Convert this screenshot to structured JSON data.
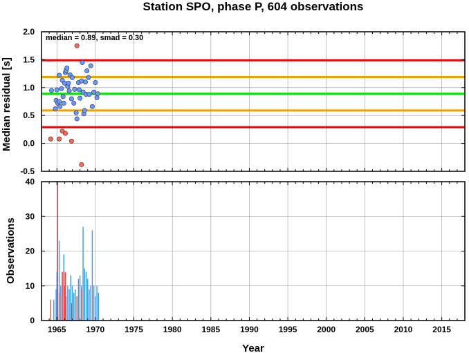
{
  "chart_data": [
    {
      "type": "scatter",
      "title": "Station SPO, phase P, 604 observations",
      "annotation": "median = 0.89, smad = 0.30",
      "ylabel": "Median residual [s]",
      "xlim": [
        1963,
        2018
      ],
      "ylim": [
        -0.5,
        2.0
      ],
      "yticks": [
        "-0.5",
        "0.0",
        "0.5",
        "1.0",
        "1.5",
        "2.0"
      ],
      "grid": true,
      "reference_lines": [
        {
          "role": "median",
          "value": 0.89,
          "color": "#00e600"
        },
        {
          "role": "median+1smad",
          "value": 1.19,
          "color": "#f0a000"
        },
        {
          "role": "median-1smad",
          "value": 0.59,
          "color": "#f0a000"
        },
        {
          "role": "median+2smad",
          "value": 1.49,
          "color": "#ee0000"
        },
        {
          "role": "median-2smad",
          "value": 0.29,
          "color": "#ee0000"
        }
      ],
      "series": [
        {
          "color": "#6699ff",
          "points": [
            {
              "x": 1964.3,
              "y": 0.95
            },
            {
              "x": 1964.8,
              "y": 0.62
            },
            {
              "x": 1964.9,
              "y": 0.77
            },
            {
              "x": 1965.0,
              "y": 0.96
            },
            {
              "x": 1965.1,
              "y": 0.72
            },
            {
              "x": 1965.3,
              "y": 0.75
            },
            {
              "x": 1965.3,
              "y": 1.22
            },
            {
              "x": 1965.4,
              "y": 0.66
            },
            {
              "x": 1965.6,
              "y": 0.98
            },
            {
              "x": 1965.7,
              "y": 1.13
            },
            {
              "x": 1965.8,
              "y": 0.84
            },
            {
              "x": 1965.9,
              "y": 0.72
            },
            {
              "x": 1966.0,
              "y": 1.08
            },
            {
              "x": 1966.1,
              "y": 1.27
            },
            {
              "x": 1966.2,
              "y": 1.31
            },
            {
              "x": 1966.3,
              "y": 1.35
            },
            {
              "x": 1966.4,
              "y": 1.02
            },
            {
              "x": 1966.5,
              "y": 1.08
            },
            {
              "x": 1966.6,
              "y": 0.94
            },
            {
              "x": 1966.7,
              "y": 1.23
            },
            {
              "x": 1966.9,
              "y": 0.8
            },
            {
              "x": 1967.0,
              "y": 1.18
            },
            {
              "x": 1967.2,
              "y": 0.72
            },
            {
              "x": 1967.3,
              "y": 0.97
            },
            {
              "x": 1967.5,
              "y": 0.55
            },
            {
              "x": 1967.6,
              "y": 0.44
            },
            {
              "x": 1967.8,
              "y": 1.09
            },
            {
              "x": 1967.9,
              "y": 0.96
            },
            {
              "x": 1968.0,
              "y": 0.81
            },
            {
              "x": 1968.2,
              "y": 1.12
            },
            {
              "x": 1968.3,
              "y": 1.45
            },
            {
              "x": 1968.4,
              "y": 0.92
            },
            {
              "x": 1968.5,
              "y": 0.53
            },
            {
              "x": 1968.6,
              "y": 0.59
            },
            {
              "x": 1968.7,
              "y": 1.1
            },
            {
              "x": 1968.8,
              "y": 0.88
            },
            {
              "x": 1968.9,
              "y": 1.3
            },
            {
              "x": 1969.1,
              "y": 1.18
            },
            {
              "x": 1969.2,
              "y": 0.88
            },
            {
              "x": 1969.4,
              "y": 1.39
            },
            {
              "x": 1969.6,
              "y": 0.66
            },
            {
              "x": 1969.8,
              "y": 0.92
            },
            {
              "x": 1970.0,
              "y": 1.09
            },
            {
              "x": 1970.2,
              "y": 0.82
            },
            {
              "x": 1970.3,
              "y": 0.89
            }
          ]
        },
        {
          "color": "#ff6655",
          "points": [
            {
              "x": 1964.2,
              "y": 0.08
            },
            {
              "x": 1965.3,
              "y": 0.08
            },
            {
              "x": 1965.7,
              "y": 0.22
            },
            {
              "x": 1966.1,
              "y": 0.18
            },
            {
              "x": 1966.9,
              "y": 0.04
            },
            {
              "x": 1967.6,
              "y": 1.75
            },
            {
              "x": 1968.2,
              "y": -0.38
            }
          ]
        }
      ]
    },
    {
      "type": "bar",
      "ylabel": "Observations",
      "xlabel": "Year",
      "xlim": [
        1963,
        2018
      ],
      "ylim": [
        0,
        40
      ],
      "xticks": [
        "1965",
        "1970",
        "1975",
        "1980",
        "1985",
        "1990",
        "1995",
        "2000",
        "2005",
        "2010",
        "2015"
      ],
      "yticks": [
        "0",
        "10",
        "20",
        "30",
        "40"
      ],
      "grid": true,
      "series": [
        {
          "color": "#3399ff",
          "bars": [
            {
              "x": 1964.6,
              "value": 6
            },
            {
              "x": 1964.9,
              "value": 9
            },
            {
              "x": 1965.0,
              "value": 14
            },
            {
              "x": 1965.1,
              "value": 9
            },
            {
              "x": 1965.3,
              "value": 23
            },
            {
              "x": 1965.5,
              "value": 10
            },
            {
              "x": 1965.7,
              "value": 14
            },
            {
              "x": 1965.9,
              "value": 19
            },
            {
              "x": 1966.0,
              "value": 10
            },
            {
              "x": 1966.1,
              "value": 14
            },
            {
              "x": 1966.2,
              "value": 7
            },
            {
              "x": 1966.4,
              "value": 10
            },
            {
              "x": 1966.6,
              "value": 9
            },
            {
              "x": 1966.8,
              "value": 13
            },
            {
              "x": 1967.0,
              "value": 10
            },
            {
              "x": 1967.2,
              "value": 8
            },
            {
              "x": 1967.4,
              "value": 9
            },
            {
              "x": 1967.6,
              "value": 7
            },
            {
              "x": 1967.8,
              "value": 12
            },
            {
              "x": 1968.0,
              "value": 13
            },
            {
              "x": 1968.2,
              "value": 10
            },
            {
              "x": 1968.4,
              "value": 27
            },
            {
              "x": 1968.6,
              "value": 15
            },
            {
              "x": 1968.8,
              "value": 14
            },
            {
              "x": 1969.0,
              "value": 12
            },
            {
              "x": 1969.2,
              "value": 9
            },
            {
              "x": 1969.4,
              "value": 10
            },
            {
              "x": 1969.6,
              "value": 26
            },
            {
              "x": 1969.8,
              "value": 10
            },
            {
              "x": 1970.0,
              "value": 7
            },
            {
              "x": 1970.2,
              "value": 10
            },
            {
              "x": 1970.4,
              "value": 8
            }
          ]
        },
        {
          "color": "#ee4444",
          "bars": [
            {
              "x": 1964.2,
              "value": 6
            },
            {
              "x": 1965.1,
              "value": 40
            },
            {
              "x": 1965.3,
              "value": 8
            },
            {
              "x": 1965.7,
              "value": 14
            },
            {
              "x": 1965.9,
              "value": 14
            },
            {
              "x": 1966.1,
              "value": 14
            },
            {
              "x": 1966.9,
              "value": 5
            },
            {
              "x": 1967.6,
              "value": 7
            },
            {
              "x": 1968.2,
              "value": 9
            }
          ]
        }
      ]
    }
  ]
}
